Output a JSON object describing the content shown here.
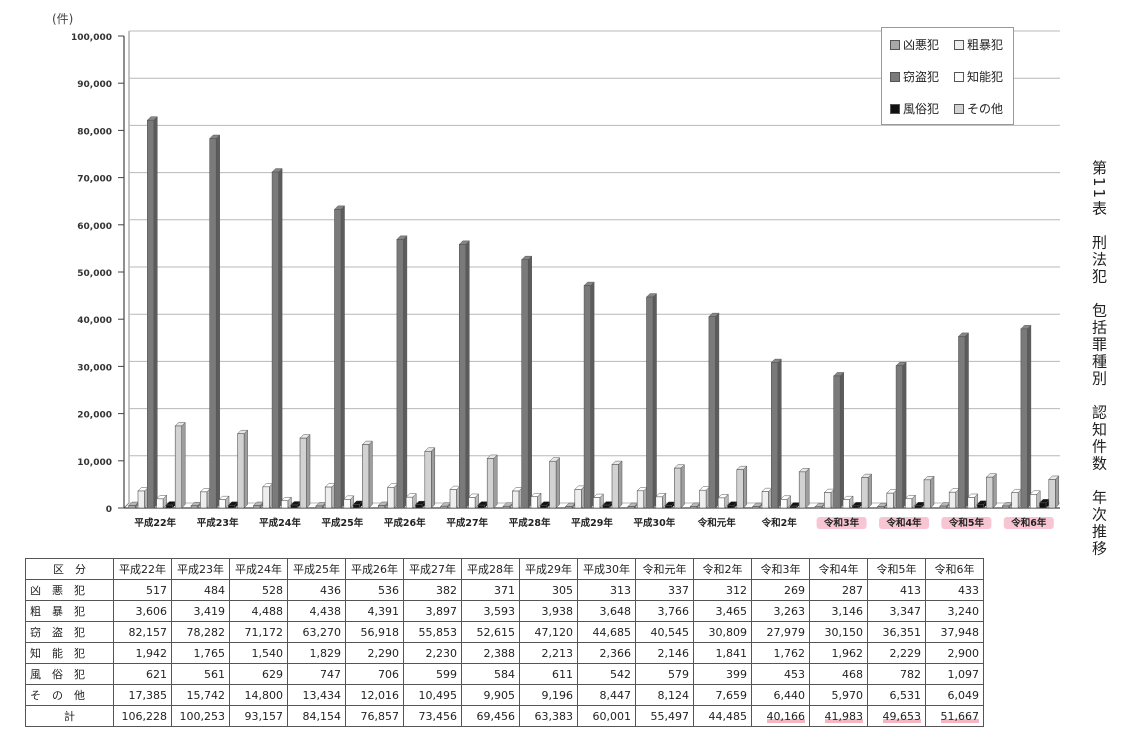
{
  "unit_label": "(件)",
  "vertical_title": "第11表　刑法犯　包括罪種別　認知件数　年次推移",
  "legend": [
    {
      "label": "凶悪犯",
      "color": "#a8a8a8"
    },
    {
      "label": "粗暴犯",
      "color": "#eeeeee"
    },
    {
      "label": "窃盗犯",
      "color": "#7a7a7a"
    },
    {
      "label": "知能犯",
      "color": "#fbfbfb"
    },
    {
      "label": "風俗犯",
      "color": "#111111"
    },
    {
      "label": "その他",
      "color": "#d2d2d2"
    }
  ],
  "chart_data": {
    "type": "bar",
    "categories": [
      "平成22年",
      "平成23年",
      "平成24年",
      "平成25年",
      "平成26年",
      "平成27年",
      "平成28年",
      "平成29年",
      "平成30年",
      "令和元年",
      "令和2年",
      "令和3年",
      "令和4年",
      "令和5年",
      "令和6年"
    ],
    "highlighted_categories": [
      "令和3年",
      "令和4年",
      "令和5年",
      "令和6年"
    ],
    "ylim": [
      0,
      100000
    ],
    "yticks": [
      "0",
      "10,000",
      "20,000",
      "30,000",
      "40,000",
      "50,000",
      "60,000",
      "70,000",
      "80,000",
      "90,000",
      "100,000"
    ],
    "series": [
      {
        "name": "凶悪犯",
        "values": [
          517,
          484,
          528,
          436,
          536,
          382,
          371,
          305,
          313,
          337,
          312,
          269,
          287,
          413,
          433
        ]
      },
      {
        "name": "粗暴犯",
        "values": [
          3606,
          3419,
          4488,
          4438,
          4391,
          3897,
          3593,
          3938,
          3648,
          3766,
          3465,
          3263,
          3146,
          3347,
          3240
        ]
      },
      {
        "name": "窃盗犯",
        "values": [
          82157,
          78282,
          71172,
          63270,
          56918,
          55853,
          52615,
          47120,
          44685,
          40545,
          30809,
          27979,
          30150,
          36351,
          37948
        ]
      },
      {
        "name": "知能犯",
        "values": [
          1942,
          1765,
          1540,
          1829,
          2290,
          2230,
          2388,
          2213,
          2366,
          2146,
          1841,
          1762,
          1962,
          2229,
          2900
        ]
      },
      {
        "name": "風俗犯",
        "values": [
          621,
          561,
          629,
          747,
          706,
          599,
          584,
          611,
          542,
          579,
          399,
          453,
          468,
          782,
          1097
        ]
      },
      {
        "name": "その他",
        "values": [
          17385,
          15742,
          14800,
          13434,
          12016,
          10495,
          9905,
          9196,
          8447,
          8124,
          7659,
          6440,
          5970,
          6531,
          6049
        ]
      }
    ]
  },
  "table": {
    "corner": "区　分",
    "headers": [
      "平成22年",
      "平成23年",
      "平成24年",
      "平成25年",
      "平成26年",
      "平成27年",
      "平成28年",
      "平成29年",
      "平成30年",
      "令和元年",
      "令和2年",
      "令和3年",
      "令和4年",
      "令和5年",
      "令和6年"
    ],
    "rows": [
      {
        "label": "凶　悪　犯",
        "values": [
          "517",
          "484",
          "528",
          "436",
          "536",
          "382",
          "371",
          "305",
          "313",
          "337",
          "312",
          "269",
          "287",
          "413",
          "433"
        ]
      },
      {
        "label": "粗　暴　犯",
        "values": [
          "3,606",
          "3,419",
          "4,488",
          "4,438",
          "4,391",
          "3,897",
          "3,593",
          "3,938",
          "3,648",
          "3,766",
          "3,465",
          "3,263",
          "3,146",
          "3,347",
          "3,240"
        ]
      },
      {
        "label": "窃　盗　犯",
        "values": [
          "82,157",
          "78,282",
          "71,172",
          "63,270",
          "56,918",
          "55,853",
          "52,615",
          "47,120",
          "44,685",
          "40,545",
          "30,809",
          "27,979",
          "30,150",
          "36,351",
          "37,948"
        ]
      },
      {
        "label": "知　能　犯",
        "values": [
          "1,942",
          "1,765",
          "1,540",
          "1,829",
          "2,290",
          "2,230",
          "2,388",
          "2,213",
          "2,366",
          "2,146",
          "1,841",
          "1,762",
          "1,962",
          "2,229",
          "2,900"
        ]
      },
      {
        "label": "風　俗　犯",
        "values": [
          "621",
          "561",
          "629",
          "747",
          "706",
          "599",
          "584",
          "611",
          "542",
          "579",
          "399",
          "453",
          "468",
          "782",
          "1,097"
        ]
      },
      {
        "label": "そ　の　他",
        "values": [
          "17,385",
          "15,742",
          "14,800",
          "13,434",
          "12,016",
          "10,495",
          "9,905",
          "9,196",
          "8,447",
          "8,124",
          "7,659",
          "6,440",
          "5,970",
          "6,531",
          "6,049"
        ]
      }
    ],
    "total_label": "計",
    "totals": [
      "106,228",
      "100,253",
      "93,157",
      "84,154",
      "76,857",
      "73,456",
      "69,456",
      "63,383",
      "60,001",
      "55,497",
      "44,485",
      "40,166",
      "41,983",
      "49,653",
      "51,667"
    ]
  }
}
